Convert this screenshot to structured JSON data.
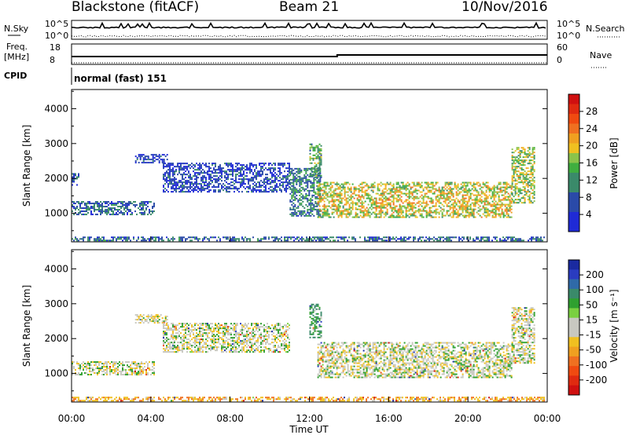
{
  "header": {
    "station": "Blackstone (fitACF)",
    "beam": "Beam 21",
    "date": "10/Nov/2016"
  },
  "info_panels": {
    "nsky_label": "N.Sky",
    "nsearch_label": "N.Search",
    "noise_ticks": [
      "10^5",
      "10^0"
    ],
    "freq_label_1": "Freq.",
    "freq_label_2": "[MHz]",
    "freq_ticks": [
      "18",
      "8"
    ],
    "nave_label": "Nave",
    "nave_ticks": [
      "60",
      "0"
    ],
    "cpid_label": "CPID",
    "cpid_value": "normal (fast) 151"
  },
  "colors": {
    "power_scale": [
      "#1f2ad6",
      "#1f2ad6",
      "#2a4aa8",
      "#2a4aa8",
      "#3a8a6a",
      "#3a8a6a",
      "#3fae3f",
      "#8bc34a",
      "#f0c020",
      "#f0a020",
      "#f07020",
      "#f04a10",
      "#e02a10",
      "#d01010"
    ],
    "velocity_scale": [
      "#1a2aa0",
      "#2a3cc0",
      "#2f6aa8",
      "#3a8a6a",
      "#2fa02f",
      "#7ad040",
      "#c8c8c0",
      "#c8c8c0",
      "#f0c020",
      "#f0a020",
      "#f07020",
      "#f04a10",
      "#e02a10",
      "#d01010"
    ]
  },
  "chart_data": [
    {
      "type": "heatmap",
      "quantity": "Power",
      "ylabel": "Slant Range [km]",
      "xlabel": "",
      "y_ticks": [
        1000,
        2000,
        3000,
        4000
      ],
      "ylim": [
        180,
        4550
      ],
      "xlim": [
        0,
        24
      ],
      "colorbar": {
        "label": "Power [dB]",
        "ticks": [
          "4",
          "8",
          "12",
          "16",
          "20",
          "24",
          "28"
        ],
        "range": [
          0,
          32
        ]
      },
      "echo_regions": [
        {
          "t_start": 0.0,
          "t_end": 23.9,
          "range_km": [
            180,
            330
          ],
          "level": 0.25
        },
        {
          "t_start": 0.0,
          "t_end": 4.2,
          "range_km": [
            950,
            1350
          ],
          "level": 0.25
        },
        {
          "t_start": 0.0,
          "t_end": 0.4,
          "range_km": [
            1800,
            2150
          ],
          "level": 0.2
        },
        {
          "t_start": 3.2,
          "t_end": 4.9,
          "range_km": [
            2450,
            2700
          ],
          "level": 0.15
        },
        {
          "t_start": 4.6,
          "t_end": 11.0,
          "range_km": [
            1600,
            2450
          ],
          "level": 0.15
        },
        {
          "t_start": 11.0,
          "t_end": 12.6,
          "range_km": [
            900,
            2300
          ],
          "level": 0.3
        },
        {
          "t_start": 12.0,
          "t_end": 12.6,
          "range_km": [
            2000,
            3000
          ],
          "level": 0.4
        },
        {
          "t_start": 12.4,
          "t_end": 22.2,
          "range_km": [
            850,
            1900
          ],
          "level": 0.55
        },
        {
          "t_start": 22.2,
          "t_end": 23.4,
          "range_km": [
            1300,
            2900
          ],
          "level": 0.5
        }
      ]
    },
    {
      "type": "heatmap",
      "quantity": "Velocity",
      "ylabel": "Slant Range [km]",
      "xlabel": "Time UT",
      "x_ticks": [
        "00:00",
        "04:00",
        "08:00",
        "12:00",
        "16:00",
        "20:00",
        "00:00"
      ],
      "y_ticks": [
        1000,
        2000,
        3000,
        4000
      ],
      "ylim": [
        180,
        4550
      ],
      "xlim": [
        0,
        24
      ],
      "colorbar": {
        "label": "Velocity [m s⁻¹]",
        "ticks": [
          "200",
          "100",
          "50",
          "15",
          "-15",
          "-50",
          "-100",
          "-200"
        ]
      },
      "echo_regions": [
        {
          "t_start": 0.0,
          "t_end": 23.9,
          "range_km": [
            180,
            330
          ],
          "velocity": -40
        },
        {
          "t_start": 0.0,
          "t_end": 4.2,
          "range_km": [
            950,
            1350
          ],
          "velocity": 0
        },
        {
          "t_start": 3.2,
          "t_end": 4.9,
          "range_km": [
            2450,
            2700
          ],
          "velocity": -10
        },
        {
          "t_start": 4.6,
          "t_end": 11.0,
          "range_km": [
            1600,
            2450
          ],
          "velocity": 0
        },
        {
          "t_start": 12.0,
          "t_end": 12.6,
          "range_km": [
            2000,
            3000
          ],
          "velocity": 40
        },
        {
          "t_start": 12.4,
          "t_end": 22.2,
          "range_km": [
            850,
            1900
          ],
          "velocity": 0
        },
        {
          "t_start": 22.2,
          "t_end": 23.4,
          "range_km": [
            1300,
            2900
          ],
          "velocity": 0
        }
      ]
    }
  ]
}
